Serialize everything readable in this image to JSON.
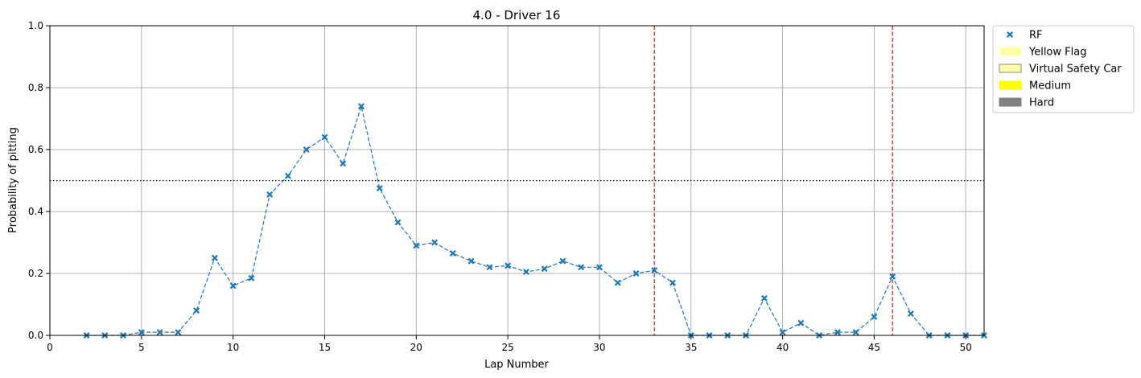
{
  "chart_data": {
    "type": "scatter",
    "title": "4.0 - Driver 16",
    "xlabel": "Lap Number",
    "ylabel": "Probability of pitting",
    "xlim": [
      0,
      51
    ],
    "ylim": [
      0,
      1.0
    ],
    "x_ticks": [
      0,
      5,
      10,
      15,
      20,
      25,
      30,
      35,
      40,
      45,
      50
    ],
    "x_tick_labels": [
      "0",
      "5",
      "10",
      "15",
      "20",
      "25",
      "30",
      "35",
      "40",
      "45",
      "50"
    ],
    "y_ticks": [
      0,
      0.2,
      0.4,
      0.6,
      0.8,
      1.0
    ],
    "y_tick_labels": [
      "0.0",
      "0.2",
      "0.4",
      "0.6",
      "0.8",
      "1.0"
    ],
    "grid": true,
    "threshold": 0.5,
    "pit_laps": [
      33,
      46
    ],
    "series": [
      {
        "name": "RF",
        "color": "#1f77b4",
        "marker": "x",
        "x": [
          2,
          3,
          4,
          5,
          6,
          7,
          8,
          9,
          10,
          11,
          12,
          13,
          14,
          15,
          16,
          17,
          18,
          19,
          20,
          21,
          22,
          23,
          24,
          25,
          26,
          27,
          28,
          29,
          30,
          31,
          32,
          33,
          34,
          35,
          36,
          37,
          38,
          39,
          40,
          41,
          42,
          43,
          44,
          45,
          46,
          47,
          48,
          49,
          50,
          51
        ],
        "y": [
          0.0,
          0.0,
          0.0,
          0.01,
          0.01,
          0.01,
          0.08,
          0.25,
          0.16,
          0.185,
          0.455,
          0.515,
          0.6,
          0.64,
          0.555,
          0.74,
          0.475,
          0.365,
          0.29,
          0.3,
          0.265,
          0.24,
          0.22,
          0.225,
          0.205,
          0.215,
          0.24,
          0.22,
          0.22,
          0.17,
          0.2,
          0.21,
          0.17,
          0.0,
          0.0,
          0.0,
          0.0,
          0.12,
          0.01,
          0.04,
          0.0,
          0.01,
          0.01,
          0.06,
          0.19,
          0.07,
          0.0,
          0.0,
          0.0,
          0.0
        ]
      }
    ],
    "legend_position": "outside-upper-right",
    "legend": [
      {
        "label": "RF",
        "kind": "marker",
        "color": "#1f77b4"
      },
      {
        "label": "Yellow Flag",
        "kind": "patch",
        "color": "#ffffa8",
        "edge": "#ffffa8"
      },
      {
        "label": "Virtual Safety Car",
        "kind": "patch",
        "color": "#ffffa8",
        "edge": "#888888"
      },
      {
        "label": "Medium",
        "kind": "patch",
        "color": "#ffff00",
        "edge": "#ffff00"
      },
      {
        "label": "Hard",
        "kind": "patch",
        "color": "#808080",
        "edge": "#808080"
      }
    ],
    "colors": {
      "series": "#1f77b4",
      "pit_line": "#ff0000",
      "threshold_line": "#000000",
      "grid": "#b0b0b0"
    }
  }
}
